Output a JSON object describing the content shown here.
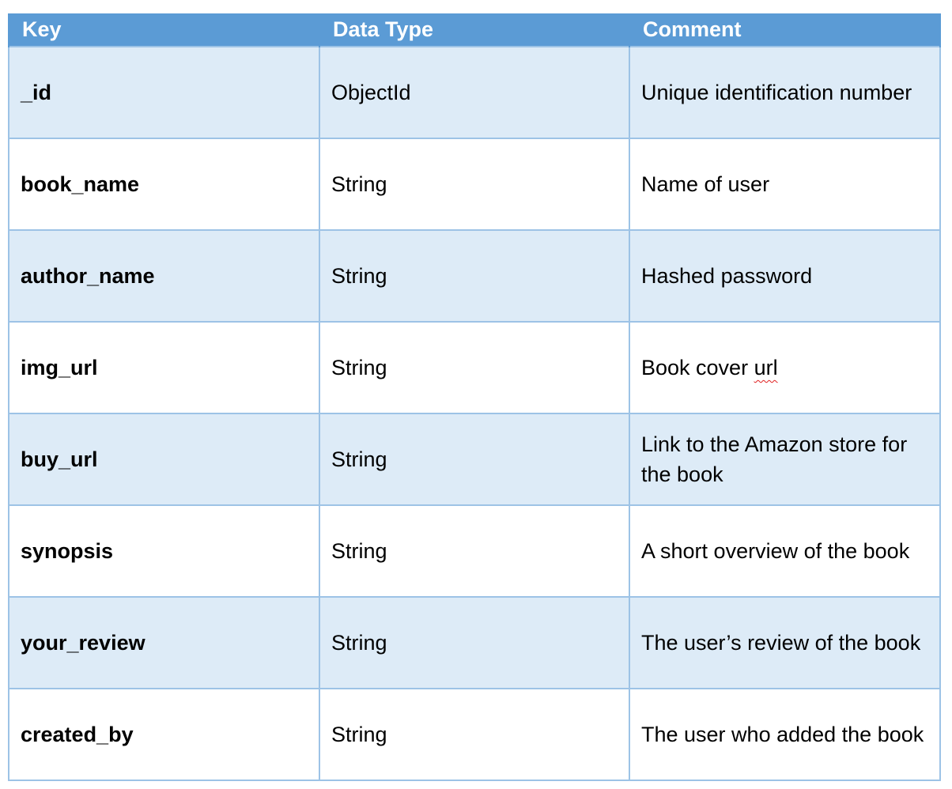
{
  "header": {
    "key": "Key",
    "data_type": "Data Type",
    "comment": "Comment"
  },
  "rows": [
    {
      "key": "_id",
      "type": "ObjectId",
      "comment": "Unique identification number"
    },
    {
      "key": "book_name",
      "type": "String",
      "comment": "Name of user"
    },
    {
      "key": "author_name",
      "type": "String",
      "comment": "Hashed password"
    },
    {
      "key": "img_url",
      "type": "String",
      "comment_prefix": "Book cover ",
      "comment_flagged": "url"
    },
    {
      "key": "buy_url",
      "type": "String",
      "comment": "Link to the Amazon store for the book"
    },
    {
      "key": "synopsis",
      "type": "String",
      "comment": "A short overview of the book"
    },
    {
      "key": "your_review",
      "type": "String",
      "comment": "The user’s review of the book"
    },
    {
      "key": "created_by",
      "type": "String",
      "comment": "The user who added the book"
    }
  ],
  "colors": {
    "header_bg": "#5b9bd5",
    "band_bg": "#ddebf7",
    "border": "#9dc3e6",
    "spellcheck": "#e02020"
  }
}
